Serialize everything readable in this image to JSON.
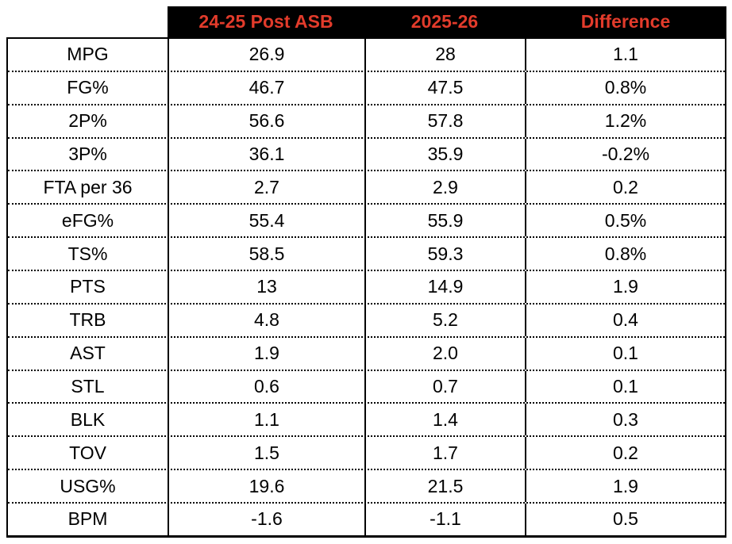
{
  "chart_data": {
    "type": "table",
    "columns": [
      "",
      "24-25 Post ASB",
      "2025-26",
      "Difference"
    ],
    "rows": [
      [
        "MPG",
        "26.9",
        "28",
        "1.1"
      ],
      [
        "FG%",
        "46.7",
        "47.5",
        "0.8%"
      ],
      [
        "2P%",
        "56.6",
        "57.8",
        "1.2%"
      ],
      [
        "3P%",
        "36.1",
        "35.9",
        "-0.2%"
      ],
      [
        "FTA per 36",
        "2.7",
        "2.9",
        "0.2"
      ],
      [
        "eFG%",
        "55.4",
        "55.9",
        "0.5%"
      ],
      [
        "TS%",
        "58.5",
        "59.3",
        "0.8%"
      ],
      [
        "PTS",
        "13",
        "14.9",
        "1.9"
      ],
      [
        "TRB",
        "4.8",
        "5.2",
        "0.4"
      ],
      [
        "AST",
        "1.9",
        "2.0",
        "0.1"
      ],
      [
        "STL",
        "0.6",
        "0.7",
        "0.1"
      ],
      [
        "BLK",
        "1.1",
        "1.4",
        "0.3"
      ],
      [
        "TOV",
        "1.5",
        "1.7",
        "0.2"
      ],
      [
        "USG%",
        "19.6",
        "21.5",
        "1.9"
      ],
      [
        "BPM",
        "-1.6",
        "-1.1",
        "0.5"
      ]
    ],
    "layout": {
      "header_bg": "#000000",
      "header_text_color": "#e23b2b",
      "body_text_color": "#000000",
      "row_separator": "dotted",
      "column_separator": "solid"
    }
  }
}
